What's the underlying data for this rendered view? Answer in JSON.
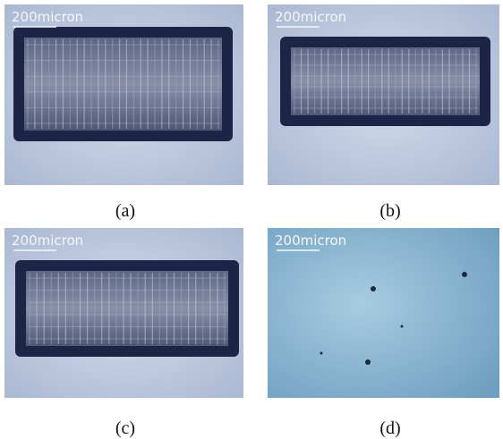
{
  "panels": [
    {
      "scale_label": "200micron",
      "caption": "(a)"
    },
    {
      "scale_label": "200micron",
      "caption": "(b)"
    },
    {
      "scale_label": "200micron",
      "caption": "(c)"
    },
    {
      "scale_label": "200micron",
      "caption": "(d)"
    }
  ]
}
